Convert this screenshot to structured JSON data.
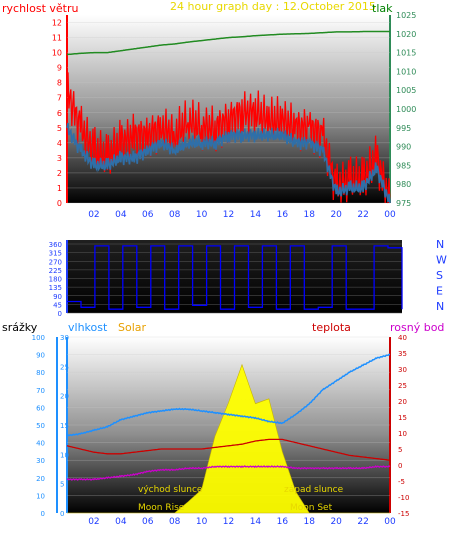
{
  "header": {
    "title": "24 hour graph day : 12.October 2015",
    "left_label": "rychlost větru",
    "right_label": "tlak"
  },
  "bottom_header": {
    "precip_label": "srážky",
    "humidity_label": "vlhkost",
    "solar_label": "Solar",
    "temp_label": "teplota",
    "dew_label": "rosný bod"
  },
  "annotations": {
    "sunrise": "východ slunce",
    "sunset": "západ slunce",
    "moonrise": "Moon Rise",
    "moonset": "Moon Set"
  },
  "colors": {
    "title": "#e8d800",
    "wind_label": "#ff0000",
    "pressure_label": "#008000",
    "pressure_axis": "#2e8b57",
    "direction": "#0000ff",
    "humidity": "#1e90ff",
    "temperature": "#cc0000",
    "dew": "#cc00cc",
    "solar": "#ffff00",
    "solar_label": "#e8a000"
  },
  "x_ticks": [
    "02",
    "04",
    "06",
    "08",
    "10",
    "12",
    "14",
    "16",
    "18",
    "20",
    "22",
    "00"
  ],
  "chart_data": [
    {
      "type": "line",
      "x": [
        0,
        1,
        2,
        3,
        4,
        5,
        6,
        7,
        8,
        9,
        10,
        11,
        12,
        13,
        14,
        15,
        16,
        17,
        18,
        19,
        20,
        21,
        22,
        23,
        24
      ],
      "series": [
        {
          "name": "rychlost větru",
          "axis": "left",
          "color": "#ff0000",
          "values": [
            7.5,
            5,
            3.5,
            3,
            4,
            4.5,
            4.5,
            5,
            4.5,
            5.5,
            5,
            5,
            5.5,
            6,
            6,
            5.5,
            5.5,
            5,
            5,
            4.5,
            1,
            1.5,
            1.5,
            3,
            0
          ]
        },
        {
          "name": "",
          "axis": "left",
          "color": "#2f6fa8",
          "values": [
            5,
            3.5,
            2.5,
            2.5,
            3,
            3,
            3.5,
            4,
            3.5,
            4,
            4,
            4,
            4.5,
            4.5,
            4.5,
            4.5,
            4.5,
            4,
            4,
            3.5,
            0.7,
            1,
            1,
            2.3,
            0
          ]
        },
        {
          "name": "tlak",
          "axis": "right",
          "color": "#228b22",
          "values": [
            1014.5,
            1014.8,
            1015,
            1015,
            1015.5,
            1016,
            1016.5,
            1017,
            1017.3,
            1017.8,
            1018.2,
            1018.6,
            1019,
            1019.2,
            1019.5,
            1019.7,
            1019.9,
            1020,
            1020.1,
            1020.3,
            1020.5,
            1020.5,
            1020.6,
            1020.6,
            1020.6
          ]
        }
      ],
      "yleft": {
        "ticks": [
          0,
          1,
          2,
          3,
          4,
          5,
          6,
          7,
          8,
          9,
          10,
          11,
          12
        ],
        "range": [
          0,
          12.5
        ]
      },
      "yright": {
        "ticks": [
          975,
          980,
          985,
          990,
          995,
          1000,
          1005,
          1010,
          1015,
          1020,
          1025
        ],
        "range": [
          975,
          1025
        ]
      }
    },
    {
      "type": "line",
      "series": [
        {
          "name": "",
          "color": "#0000ff",
          "values": [
            60,
            30,
            350,
            20,
            350,
            30,
            350,
            20,
            350,
            40,
            350,
            20,
            350,
            30,
            350,
            20,
            350,
            20,
            30,
            350,
            20,
            20,
            350,
            340,
            20
          ]
        }
      ],
      "x": [
        0,
        1,
        2,
        3,
        4,
        5,
        6,
        7,
        8,
        9,
        10,
        11,
        12,
        13,
        14,
        15,
        16,
        17,
        18,
        19,
        20,
        21,
        22,
        23,
        24
      ],
      "yleft": {
        "ticks": [
          0,
          45,
          90,
          135,
          180,
          225,
          270,
          315,
          360
        ],
        "range": [
          0,
          360
        ]
      },
      "yright_labels": [
        "N",
        "W",
        "S",
        "E",
        "N"
      ]
    },
    {
      "type": "line",
      "x": [
        0,
        1,
        2,
        3,
        4,
        5,
        6,
        7,
        8,
        9,
        10,
        11,
        12,
        13,
        14,
        15,
        16,
        17,
        18,
        19,
        20,
        21,
        22,
        23,
        24
      ],
      "series": [
        {
          "name": "vlhkost",
          "axis": "humidity",
          "color": "#1e90ff",
          "values": [
            44,
            45,
            47,
            49,
            53,
            55,
            57,
            58,
            59,
            59,
            58,
            57,
            56,
            55,
            54,
            52,
            51,
            56,
            62,
            70,
            75,
            80,
            84,
            88,
            90
          ]
        },
        {
          "name": "teplota",
          "axis": "temperature",
          "color": "#cc0000",
          "values": [
            6,
            5,
            4,
            3.5,
            3.5,
            4,
            4.5,
            5,
            5,
            5,
            5,
            5.5,
            6,
            6.5,
            7.5,
            8,
            8,
            7,
            6,
            5,
            4,
            3,
            2.5,
            2,
            1.5
          ]
        },
        {
          "name": "rosný bod",
          "axis": "temperature",
          "color": "#cc00cc",
          "values": [
            -4.5,
            -4.5,
            -4.5,
            -4,
            -3.5,
            -3,
            -2,
            -1.5,
            -1.5,
            -1,
            -1,
            -0.5,
            -0.5,
            -0.5,
            -0.5,
            -0.5,
            -0.5,
            -1,
            -1,
            -1,
            -1,
            -1,
            -1,
            -0.5,
            -0.5
          ]
        },
        {
          "name": "Solar",
          "axis": "solar",
          "color": "#ffff00",
          "values": [
            0,
            0,
            0,
            0,
            0,
            0,
            0,
            0,
            0,
            1,
            5,
            12,
            20,
            24,
            20,
            18,
            12,
            2,
            0,
            0,
            0,
            0,
            0,
            0,
            0
          ]
        }
      ],
      "y_precip": {
        "ticks": [
          0,
          10,
          20,
          30,
          40,
          50,
          60,
          70,
          80,
          90,
          100
        ],
        "range": [
          0,
          100
        ]
      },
      "y_humidity": {
        "ticks": [
          0,
          5,
          10,
          15,
          20,
          25,
          30
        ],
        "range": [
          0,
          30
        ]
      },
      "y_temperature": {
        "ticks": [
          -15,
          -10,
          -5,
          0,
          5,
          10,
          15,
          20,
          25,
          30,
          35,
          40
        ],
        "range": [
          -15,
          40
        ]
      }
    }
  ]
}
